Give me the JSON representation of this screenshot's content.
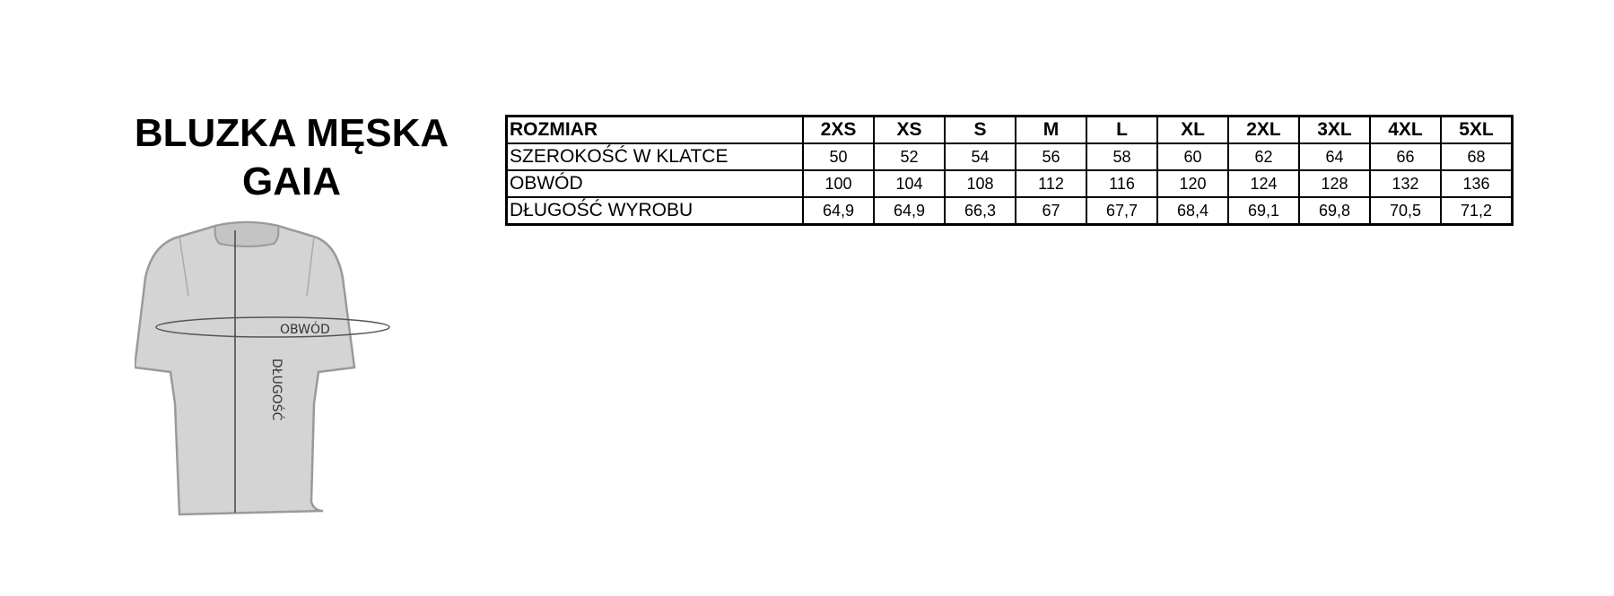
{
  "title": {
    "line1": "BLUZKA MĘSKA",
    "line2": "GAIA"
  },
  "diagram": {
    "girth_label": "OBWÓD",
    "length_label": "DŁUGOŚĆ"
  },
  "table": {
    "header_label": "ROZMIAR",
    "sizes": [
      "2XS",
      "XS",
      "S",
      "M",
      "L",
      "XL",
      "2XL",
      "3XL",
      "4XL",
      "5XL"
    ],
    "rows": [
      {
        "label": "SZEROKOŚĆ W KLATCE",
        "values": [
          "50",
          "52",
          "54",
          "56",
          "58",
          "60",
          "62",
          "64",
          "66",
          "68"
        ]
      },
      {
        "label": "OBWÓD",
        "values": [
          "100",
          "104",
          "108",
          "112",
          "116",
          "120",
          "124",
          "128",
          "132",
          "136"
        ]
      },
      {
        "label": "DŁUGOŚĆ WYROBU",
        "values": [
          "64,9",
          "64,9",
          "66,3",
          "67",
          "67,7",
          "68,4",
          "69,1",
          "69,8",
          "70,5",
          "71,2"
        ]
      }
    ]
  }
}
